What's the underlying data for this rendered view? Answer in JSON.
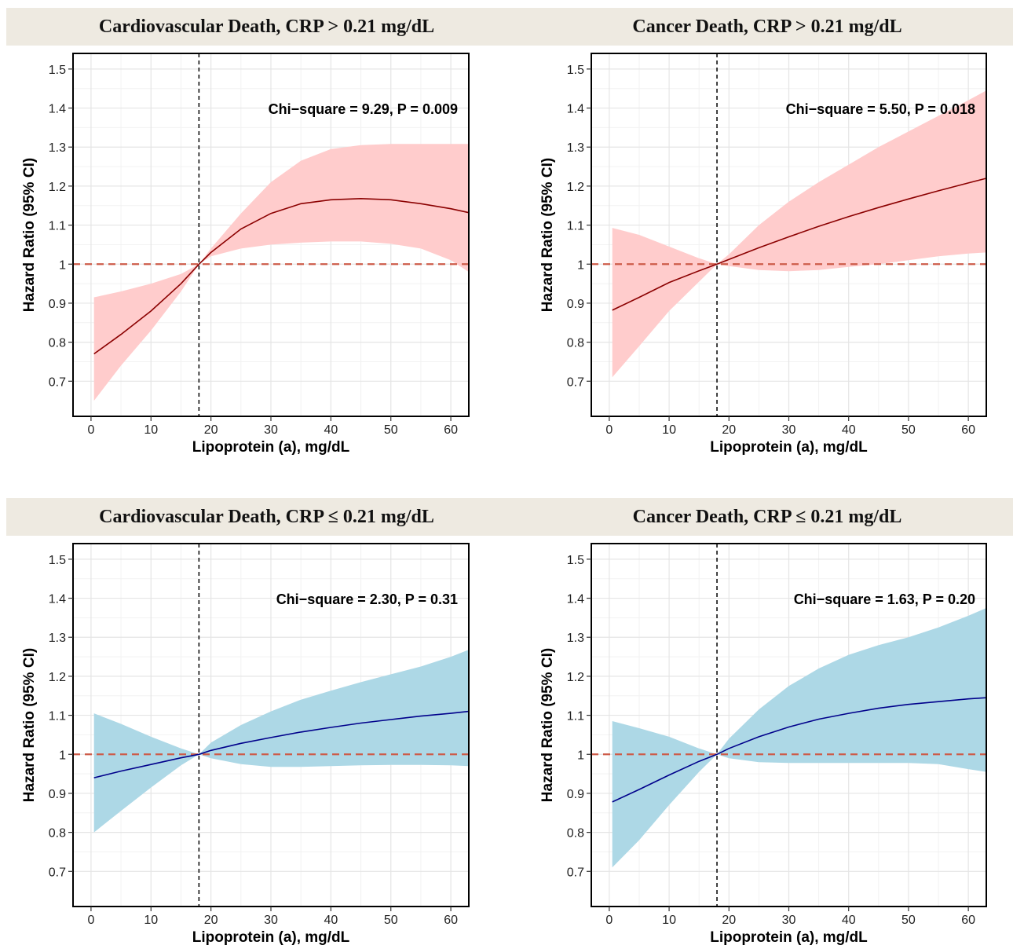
{
  "chart_data": [
    {
      "type": "line",
      "title": "Cardiovascular Death, CRP > 0.21 mg/dL",
      "annotation": "Chi−square = 9.29, P = 0.009",
      "xlabel": "Lipoprotein (a), mg/dL",
      "ylabel": "Hazard Ratio (95% CI)",
      "xlim": [
        -3,
        63
      ],
      "ylim": [
        0.61,
        1.54
      ],
      "xticks": [
        0,
        10,
        20,
        30,
        40,
        50,
        60
      ],
      "yticks": [
        0.7,
        0.8,
        0.9,
        1.0,
        1.1,
        1.2,
        1.3,
        1.4,
        1.5
      ],
      "ytick_labels": [
        "0.7",
        "0.8",
        "0.9",
        "1",
        "1.1",
        "1.2",
        "1.3",
        "1.4",
        "1.5"
      ],
      "xticklabels": [
        "0",
        "10",
        "20",
        "30",
        "40",
        "50",
        "60"
      ],
      "reference_x": 18,
      "reference_y": 1.0,
      "grid": true,
      "line_color": "#8B0000",
      "band_color": "#FFCCCC",
      "refline_color": "#CD5C4A",
      "x": [
        0.5,
        5,
        10,
        15,
        18,
        20,
        25,
        30,
        35,
        40,
        45,
        50,
        55,
        60,
        63
      ],
      "y": [
        0.77,
        0.82,
        0.88,
        0.95,
        1.0,
        1.03,
        1.09,
        1.13,
        1.155,
        1.165,
        1.168,
        1.165,
        1.155,
        1.142,
        1.132
      ],
      "lower": [
        0.65,
        0.74,
        0.83,
        0.93,
        1.0,
        1.02,
        1.04,
        1.05,
        1.055,
        1.058,
        1.058,
        1.052,
        1.04,
        1.01,
        0.98
      ],
      "upper": [
        0.915,
        0.93,
        0.95,
        0.975,
        1.0,
        1.04,
        1.13,
        1.21,
        1.265,
        1.295,
        1.305,
        1.308,
        1.308,
        1.308,
        1.308
      ]
    },
    {
      "type": "line",
      "title": "Cancer Death, CRP > 0.21 mg/dL",
      "annotation": "Chi−square = 5.50, P = 0.018",
      "xlabel": "Lipoprotein (a), mg/dL",
      "ylabel": "Hazard Ratio (95% CI)",
      "xlim": [
        -3,
        63
      ],
      "ylim": [
        0.61,
        1.54
      ],
      "xticks": [
        0,
        10,
        20,
        30,
        40,
        50,
        60
      ],
      "yticks": [
        0.7,
        0.8,
        0.9,
        1.0,
        1.1,
        1.2,
        1.3,
        1.4,
        1.5
      ],
      "ytick_labels": [
        "0.7",
        "0.8",
        "0.9",
        "1",
        "1.1",
        "1.2",
        "1.3",
        "1.4",
        "1.5"
      ],
      "xticklabels": [
        "0",
        "10",
        "20",
        "30",
        "40",
        "50",
        "60"
      ],
      "reference_x": 18,
      "reference_y": 1.0,
      "grid": true,
      "line_color": "#8B0000",
      "band_color": "#FFCCCC",
      "refline_color": "#CD5C4A",
      "x": [
        0.5,
        5,
        10,
        15,
        18,
        20,
        25,
        30,
        35,
        40,
        45,
        50,
        55,
        60,
        63
      ],
      "y": [
        0.882,
        0.915,
        0.953,
        0.983,
        1.0,
        1.012,
        1.042,
        1.07,
        1.097,
        1.122,
        1.145,
        1.167,
        1.188,
        1.208,
        1.22
      ],
      "lower": [
        0.71,
        0.79,
        0.88,
        0.955,
        1.0,
        0.995,
        0.985,
        0.982,
        0.985,
        0.993,
        1.0,
        1.01,
        1.02,
        1.027,
        1.03
      ],
      "upper": [
        1.093,
        1.075,
        1.045,
        1.015,
        1.0,
        1.025,
        1.1,
        1.16,
        1.21,
        1.255,
        1.3,
        1.34,
        1.38,
        1.42,
        1.445
      ]
    },
    {
      "type": "line",
      "title": "Cardiovascular Death, CRP ≤ 0.21 mg/dL",
      "annotation": "Chi−square = 2.30, P = 0.31",
      "xlabel": "Lipoprotein (a), mg/dL",
      "ylabel": "Hazard Ratio (95% CI)",
      "xlim": [
        -3,
        63
      ],
      "ylim": [
        0.61,
        1.54
      ],
      "xticks": [
        0,
        10,
        20,
        30,
        40,
        50,
        60
      ],
      "yticks": [
        0.7,
        0.8,
        0.9,
        1.0,
        1.1,
        1.2,
        1.3,
        1.4,
        1.5
      ],
      "ytick_labels": [
        "0.7",
        "0.8",
        "0.9",
        "1",
        "1.1",
        "1.2",
        "1.3",
        "1.4",
        "1.5"
      ],
      "xticklabels": [
        "0",
        "10",
        "20",
        "30",
        "40",
        "50",
        "60"
      ],
      "reference_x": 18,
      "reference_y": 1.0,
      "grid": true,
      "line_color": "#00008B",
      "band_color": "#ADD8E6",
      "refline_color": "#CD5C4A",
      "x": [
        0.5,
        5,
        10,
        15,
        18,
        20,
        25,
        30,
        35,
        40,
        45,
        50,
        55,
        60,
        63
      ],
      "y": [
        0.94,
        0.957,
        0.974,
        0.991,
        1.0,
        1.01,
        1.028,
        1.043,
        1.057,
        1.069,
        1.08,
        1.089,
        1.098,
        1.105,
        1.11
      ],
      "lower": [
        0.8,
        0.855,
        0.915,
        0.972,
        1.0,
        0.99,
        0.975,
        0.968,
        0.968,
        0.97,
        0.972,
        0.973,
        0.973,
        0.972,
        0.97
      ],
      "upper": [
        1.105,
        1.078,
        1.045,
        1.015,
        1.0,
        1.03,
        1.075,
        1.11,
        1.14,
        1.163,
        1.185,
        1.205,
        1.225,
        1.25,
        1.268
      ]
    },
    {
      "type": "line",
      "title": "Cancer Death, CRP ≤ 0.21 mg/dL",
      "annotation": "Chi−square = 1.63, P = 0.20",
      "xlabel": "Lipoprotein (a), mg/dL",
      "ylabel": "Hazard Ratio (95% CI)",
      "xlim": [
        -3,
        63
      ],
      "ylim": [
        0.61,
        1.54
      ],
      "xticks": [
        0,
        10,
        20,
        30,
        40,
        50,
        60
      ],
      "yticks": [
        0.7,
        0.8,
        0.9,
        1.0,
        1.1,
        1.2,
        1.3,
        1.4,
        1.5
      ],
      "ytick_labels": [
        "0.7",
        "0.8",
        "0.9",
        "1",
        "1.1",
        "1.2",
        "1.3",
        "1.4",
        "1.5"
      ],
      "xticklabels": [
        "0",
        "10",
        "20",
        "30",
        "40",
        "50",
        "60"
      ],
      "reference_x": 18,
      "reference_y": 1.0,
      "grid": true,
      "line_color": "#00008B",
      "band_color": "#ADD8E6",
      "refline_color": "#CD5C4A",
      "x": [
        0.5,
        5,
        10,
        15,
        18,
        20,
        25,
        30,
        35,
        40,
        45,
        50,
        55,
        60,
        63
      ],
      "y": [
        0.878,
        0.91,
        0.947,
        0.982,
        1.0,
        1.015,
        1.045,
        1.07,
        1.09,
        1.105,
        1.118,
        1.128,
        1.135,
        1.142,
        1.145
      ],
      "lower": [
        0.71,
        0.78,
        0.87,
        0.955,
        1.0,
        0.99,
        0.98,
        0.978,
        0.978,
        0.978,
        0.978,
        0.978,
        0.975,
        0.962,
        0.955
      ],
      "upper": [
        1.085,
        1.067,
        1.045,
        1.015,
        1.0,
        1.04,
        1.115,
        1.175,
        1.22,
        1.255,
        1.28,
        1.3,
        1.325,
        1.355,
        1.375
      ]
    }
  ]
}
